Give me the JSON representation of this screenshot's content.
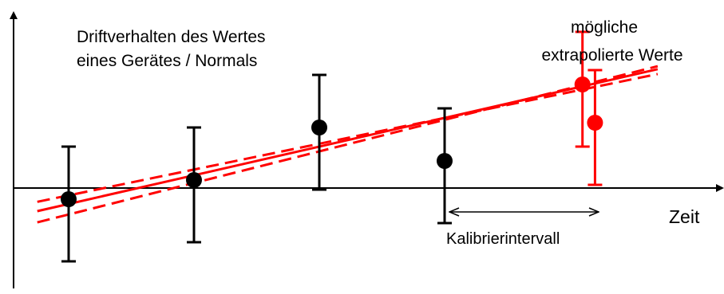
{
  "texts": {
    "drift_line1": "Driftverhalten des Wertes",
    "drift_line2": "eines Gerätes / Normals",
    "extrap_line1": "mögliche",
    "extrap_line2": "extrapolierte Werte",
    "zeit": "Zeit",
    "interval": "Kalibrierintervall"
  },
  "colors": {
    "measured": "#000000",
    "extrapolated": "#ff0000",
    "fit": "#ff0000"
  },
  "chart_data": {
    "type": "scatter",
    "measured_points": [
      {
        "x": 1,
        "y": 0.25,
        "err_low": 0.65,
        "err_high": 0.55
      },
      {
        "x": 2,
        "y": 0.45,
        "err_low": 0.65,
        "err_high": 0.55
      },
      {
        "x": 3,
        "y": 1.0,
        "err_low": 0.65,
        "err_high": 0.55
      },
      {
        "x": 4,
        "y": 0.65,
        "err_low": 0.65,
        "err_high": 0.55
      }
    ],
    "extrapolated_points": [
      {
        "x": 5.1,
        "y": 1.45,
        "err_low": 0.65,
        "err_high": 0.55
      },
      {
        "x": 5.2,
        "y": 1.05,
        "err_low": 0.65,
        "err_high": 0.55
      }
    ],
    "fit_line": {
      "slope": 0.3,
      "intercept": -0.1
    },
    "confidence_bands": [
      {
        "slope": 0.27,
        "intercept": 0.02
      },
      {
        "slope": 0.33,
        "intercept": -0.24
      }
    ]
  }
}
